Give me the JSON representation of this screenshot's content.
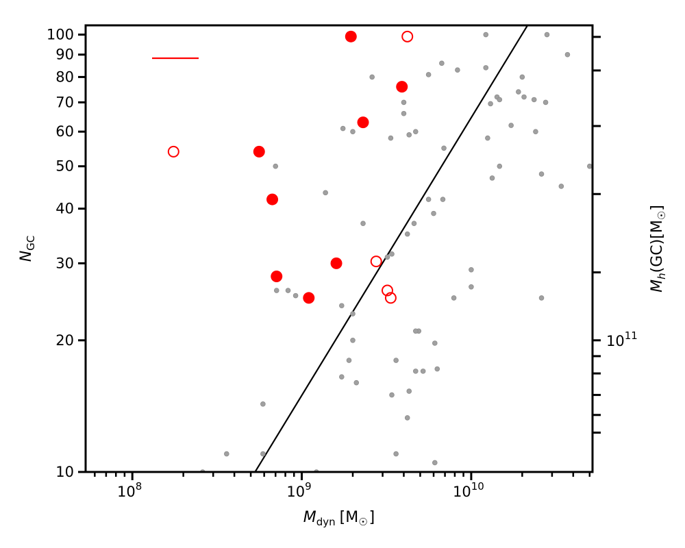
{
  "chart_data": {
    "type": "scatter",
    "x_scale": "log",
    "y_scale": "log",
    "xlim": [
      53000000.0,
      52000000000.0
    ],
    "ylim": [
      10,
      105
    ],
    "xlabel": {
      "main": "M",
      "sub": "dyn",
      "unit_open": "[M",
      "unit_sub": "☉",
      "unit_close": "]"
    },
    "ylabel": {
      "main": "N",
      "sub": "GC"
    },
    "y2label": {
      "main": "M",
      "sub": "h",
      "rest": "(GC)[M",
      "unit_sub": "☉",
      "close": "]"
    },
    "x_major_ticks": [
      {
        "value": 100000000.0,
        "base": "10",
        "exp": "8"
      },
      {
        "value": 1000000000.0,
        "base": "10",
        "exp": "9"
      },
      {
        "value": 10000000000.0,
        "base": "10",
        "exp": "10"
      }
    ],
    "y_ticks": [
      10,
      20,
      30,
      40,
      50,
      60,
      70,
      80,
      90,
      100
    ],
    "y2_label_tick": {
      "value": 20,
      "base": "10",
      "exp": "11"
    },
    "y2_minor_ticks": [
      12.3,
      13.5,
      15.0,
      16.8,
      18.4,
      28.6,
      43.2,
      61.8,
      82.8,
      98.8
    ],
    "line": {
      "x": [
        530000000.0,
        21500000000.0
      ],
      "y": [
        10,
        105
      ],
      "color": "#000000"
    },
    "legend_segment_color": "#ff0000",
    "series": [
      {
        "role": "filled",
        "color": "#ff0000",
        "x": [
          1950000000.0,
          3900000000.0,
          2300000000.0,
          560000000.0,
          670000000.0,
          1600000000.0,
          710000000.0,
          1100000000.0
        ],
        "y": [
          99,
          76,
          63,
          54,
          42,
          30,
          28,
          25
        ]
      },
      {
        "role": "open",
        "color": "#ff0000",
        "x": [
          4200000000.0,
          175000000.0,
          2750000000.0,
          3200000000.0,
          3350000000.0
        ],
        "y": [
          99,
          54,
          30.3,
          26,
          25
        ]
      },
      {
        "role": "background",
        "color": "#a0a0a0",
        "x": [
          2600000000.0,
          4000000000.0,
          4000000000.0,
          1750000000.0,
          2000000000.0,
          4300000000.0,
          4700000000.0,
          6700000000.0,
          5600000000.0,
          8300000000.0,
          12200000000.0,
          12200000000.0,
          13000000000.0,
          14200000000.0,
          14700000000.0,
          20000000000.0,
          20500000000.0,
          23500000000.0,
          27500000000.0,
          19000000000.0,
          24000000000.0,
          3350000000.0,
          12500000000.0,
          28000000000.0,
          37000000000.0,
          6900000000.0,
          14700000000.0,
          13300000000.0,
          26000000000.0,
          34000000000.0,
          50000000000.0,
          17200000000.0,
          1380000000.0,
          700000000.0,
          6800000000.0,
          5600000000.0,
          6000000000.0,
          4600000000.0,
          2300000000.0,
          4200000000.0,
          3200000000.0,
          3400000000.0,
          10000000000.0,
          10000000000.0,
          710000000.0,
          830000000.0,
          920000000.0,
          7900000000.0,
          1720000000.0,
          26000000000.0,
          2000000000.0,
          4900000000.0,
          4700000000.0,
          2000000000.0,
          6100000000.0,
          3600000000.0,
          1900000000.0,
          6300000000.0,
          4700000000.0,
          5200000000.0,
          1720000000.0,
          2100000000.0,
          4300000000.0,
          3400000000.0,
          590000000.0,
          4200000000.0,
          360000000.0,
          590000000.0,
          3600000000.0,
          6100000000.0,
          1220000000.0,
          260000000.0
        ],
        "y": [
          80,
          70,
          66,
          61,
          60,
          59,
          60,
          86,
          81,
          83,
          100,
          84,
          69.5,
          72,
          71,
          80,
          72,
          71,
          70,
          74,
          60,
          58,
          58,
          100,
          90,
          55,
          50,
          47,
          48,
          45,
          50,
          62,
          43.5,
          50,
          42,
          42,
          39,
          37,
          37,
          35,
          31,
          31.5,
          29,
          26.5,
          26,
          26,
          25.3,
          25,
          24,
          25,
          23,
          21,
          21,
          20,
          19.7,
          18,
          18,
          17.2,
          17,
          17,
          16.5,
          16,
          15.3,
          15,
          14.3,
          13.3,
          11,
          11,
          11,
          10.5,
          10,
          10
        ]
      }
    ]
  }
}
